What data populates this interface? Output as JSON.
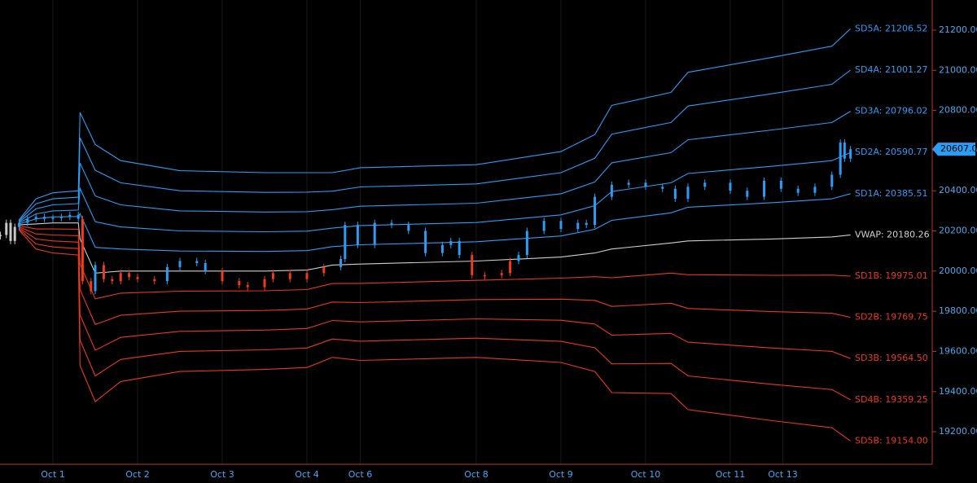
{
  "chart_data": {
    "type": "line",
    "xlim": [
      -0.625,
      10.385
    ],
    "ylim": [
      19038,
      21350
    ],
    "xticks": [
      {
        "value": 0,
        "label": "Oct 1"
      },
      {
        "value": 1,
        "label": "Oct 2"
      },
      {
        "value": 2,
        "label": "Oct 3"
      },
      {
        "value": 3,
        "label": "Oct 4"
      },
      {
        "value": 3.63,
        "label": "Oct 6"
      },
      {
        "value": 5,
        "label": "Oct 8"
      },
      {
        "value": 6,
        "label": "Oct 9"
      },
      {
        "value": 7,
        "label": "Oct 10"
      },
      {
        "value": 8,
        "label": "Oct 11"
      },
      {
        "value": 8.62,
        "label": "Oct 13"
      }
    ],
    "yticks": [
      {
        "value": 19200,
        "label": "19200.00"
      },
      {
        "value": 19400,
        "label": "19400.00"
      },
      {
        "value": 19600,
        "label": "19600.00"
      },
      {
        "value": 19800,
        "label": "19800.00"
      },
      {
        "value": 20000,
        "label": "20000.00"
      },
      {
        "value": 20200,
        "label": "20200.00"
      },
      {
        "value": 20400,
        "label": "20400.00"
      },
      {
        "value": 20600,
        "label": "20600.00"
      },
      {
        "value": 20800,
        "label": "20800.00"
      },
      {
        "value": 21000,
        "label": "21000.00"
      },
      {
        "value": 21200,
        "label": "21200.00"
      }
    ],
    "grid": true,
    "x": [
      -0.4,
      -0.2,
      0,
      0.3,
      0.32,
      0.5,
      0.8,
      1.5,
      2.5,
      3.0,
      3.3,
      3.63,
      5,
      6,
      6.4,
      6.6,
      7.3,
      7.5,
      8.5,
      9.2,
      9.42
    ],
    "series": [
      {
        "name": "SD5A: 21206.52",
        "color": "#2a9df4",
        "values": [
          20255,
          20360,
          20390,
          20400,
          20790,
          20630,
          20550,
          20500,
          20490,
          20490,
          20490,
          20515,
          20530,
          20595,
          20680,
          20825,
          20890,
          20990,
          21065,
          21120,
          21206.52
        ]
      },
      {
        "name": "SD4A: 21001.27",
        "color": "#2a9df4",
        "values": [
          20250,
          20335,
          20360,
          20368,
          20664,
          20502,
          20440,
          20400,
          20392,
          20393,
          20398,
          20419,
          20434,
          20490,
          20562,
          20682,
          20740,
          20822,
          20884,
          20930,
          21001.27
        ]
      },
      {
        "name": "SD3A: 20796.02",
        "color": "#2a9df4",
        "values": [
          20245,
          20310,
          20330,
          20336,
          20538,
          20374,
          20330,
          20300,
          20294,
          20296,
          20306,
          20323,
          20338,
          20385,
          20444,
          20539,
          20590,
          20654,
          20703,
          20740,
          20796.02
        ]
      },
      {
        "name": "SD2A: 20590.77",
        "color": "#2a9df4",
        "values": [
          20240,
          20285,
          20300,
          20304,
          20412,
          20246,
          20220,
          20200,
          20196,
          20199,
          20214,
          20227,
          20242,
          20280,
          20326,
          20396,
          20440,
          20486,
          20522,
          20550,
          20590.77
        ]
      },
      {
        "name": "SD1A: 20385.51",
        "color": "#2a9df4",
        "values": [
          20235,
          20260,
          20270,
          20272,
          20286,
          20118,
          20110,
          20100,
          20098,
          20102,
          20122,
          20131,
          20146,
          20175,
          20208,
          20253,
          20290,
          20318,
          20341,
          20360,
          20385.51
        ]
      },
      {
        "name": "VWAP: 20180.26",
        "color": "#cfcfcf",
        "values": [
          20230,
          20235,
          20240,
          20240,
          20160,
          19990,
          20000,
          20000,
          20000,
          20005,
          20030,
          20035,
          20050,
          20070,
          20090,
          20110,
          20140,
          20150,
          20160,
          20170,
          20180.26
        ]
      },
      {
        "name": "SD1B: 19975.01",
        "color": "#e8391d",
        "values": [
          20225,
          20210,
          20210,
          20208,
          20034,
          19862,
          19890,
          19900,
          19902,
          19908,
          19938,
          19939,
          19954,
          19965,
          19972,
          19967,
          19990,
          19982,
          19979,
          19980,
          19975.01
        ]
      },
      {
        "name": "SD2B: 19769.75",
        "color": "#e8391d",
        "values": [
          20220,
          20185,
          20180,
          20176,
          19908,
          19734,
          19780,
          19800,
          19804,
          19811,
          19846,
          19843,
          19858,
          19860,
          19854,
          19824,
          19840,
          19814,
          19798,
          19790,
          19769.75
        ]
      },
      {
        "name": "SD3B: 19564.50",
        "color": "#e8391d",
        "values": [
          20215,
          20160,
          20150,
          20144,
          19782,
          19606,
          19670,
          19700,
          19706,
          19714,
          19754,
          19747,
          19762,
          19755,
          19736,
          19681,
          19690,
          19646,
          19617,
          19600,
          19564.5
        ]
      },
      {
        "name": "SD4B: 19359.25",
        "color": "#e8391d",
        "values": [
          20210,
          20135,
          20120,
          20112,
          19656,
          19478,
          19560,
          19600,
          19608,
          19617,
          19662,
          19651,
          19666,
          19650,
          19618,
          19538,
          19540,
          19478,
          19436,
          19410,
          19359.25
        ]
      },
      {
        "name": "SD5B: 19154.00",
        "color": "#e8391d",
        "values": [
          20205,
          20110,
          20090,
          20080,
          19530,
          19350,
          19450,
          19500,
          19510,
          19520,
          19570,
          19555,
          19570,
          19545,
          19500,
          19395,
          19390,
          19310,
          19255,
          19220,
          19154
        ]
      }
    ],
    "price": {
      "up_color": "#2a9df4",
      "down_color": "#f03c1e",
      "pre_color": "#c8c8c8",
      "x": [
        -0.62,
        -0.55,
        -0.5,
        -0.45,
        -0.4,
        -0.3,
        -0.2,
        -0.1,
        0,
        0.1,
        0.2,
        0.3,
        0.35,
        0.45,
        0.5,
        0.6,
        0.7,
        0.8,
        0.9,
        1.0,
        1.2,
        1.35,
        1.5,
        1.7,
        1.8,
        2.0,
        2.2,
        2.3,
        2.5,
        2.6,
        2.8,
        3.0,
        3.2,
        3.4,
        3.45,
        3.6,
        3.8,
        4.0,
        4.2,
        4.4,
        4.6,
        4.7,
        4.8,
        4.95,
        5.1,
        5.3,
        5.4,
        5.5,
        5.6,
        5.8,
        6.0,
        6.2,
        6.3,
        6.4,
        6.6,
        6.8,
        7.0,
        7.2,
        7.35,
        7.5,
        7.7,
        8.0,
        8.2,
        8.4,
        8.6,
        8.8,
        9.0,
        9.2,
        9.3,
        9.35,
        9.42
      ],
      "values": [
        20180,
        20240,
        20150,
        20220,
        20240,
        20260,
        20270,
        20260,
        20265,
        20270,
        20280,
        20260,
        19950,
        19900,
        20030,
        19960,
        19950,
        19990,
        19970,
        19960,
        19950,
        20020,
        20050,
        20040,
        20000,
        19950,
        19930,
        19920,
        19960,
        19990,
        19960,
        19990,
        20020,
        20060,
        20230,
        20130,
        20240,
        20230,
        20200,
        20090,
        20130,
        20150,
        20080,
        19980,
        19980,
        19990,
        20050,
        20080,
        20200,
        20250,
        20210,
        20240,
        20230,
        20370,
        20430,
        20440,
        20420,
        20410,
        20360,
        20420,
        20440,
        20400,
        20370,
        20450,
        20410,
        20390,
        20420,
        20480,
        20640,
        20560,
        20607
      ]
    },
    "price_marker": {
      "value": 20607,
      "label": "20607.00",
      "color": "#2a9df4"
    }
  }
}
